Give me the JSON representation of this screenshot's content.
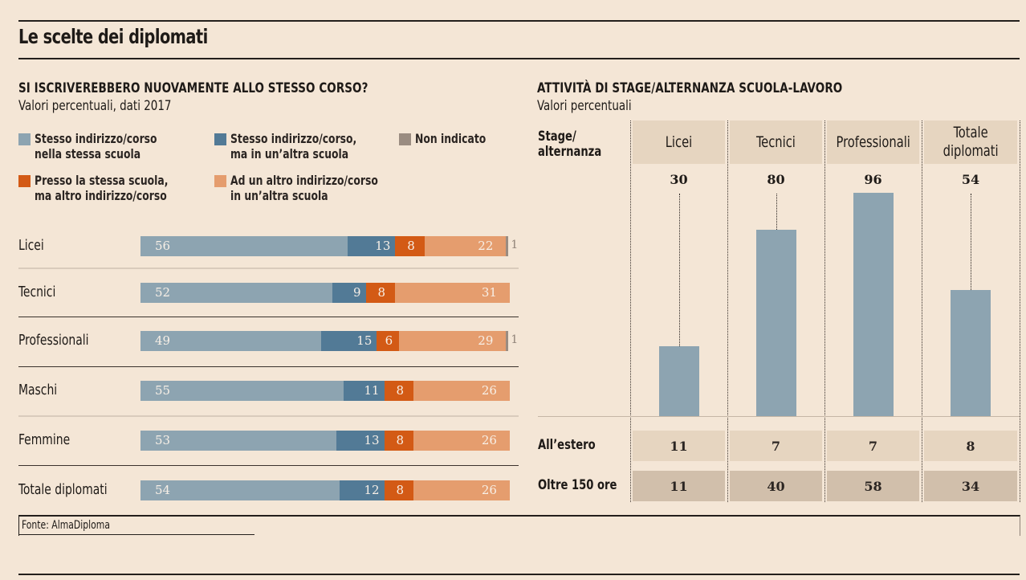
{
  "title": "Le scelte dei diplomati",
  "source": "Fonte: AlmaDiploma",
  "colors": {
    "background": "#f4e6d6",
    "same_course_same_school": "#8da4b1",
    "same_course_other_school": "#527a96",
    "same_school_other_course": "#d35a15",
    "other_course_other_school": "#e59d6e",
    "not_indicated": "#9a8c81",
    "bar_right": "#8da4b1"
  },
  "chart_data": [
    {
      "type": "bar",
      "orientation": "horizontal-stacked",
      "title": "SI ISCRIVEREBBERO NUOVAMENTE ALLO STESSO CORSO?",
      "subtitle": "Valori percentuali, dati 2017",
      "xlabel": "",
      "ylabel": "",
      "xlim": [
        0,
        100
      ],
      "grid": false,
      "legend_position": "top",
      "categories": [
        "Licei",
        "Tecnici",
        "Professionali",
        "Maschi",
        "Femmine",
        "Totale diplomati"
      ],
      "series": [
        {
          "name": "Stesso indirizzo/corso\nnella stessa scuola",
          "color_key": "same_course_same_school",
          "values": [
            56,
            52,
            49,
            55,
            53,
            54
          ]
        },
        {
          "name": "Stesso indirizzo/corso,\nma in un’altra scuola",
          "color_key": "same_course_other_school",
          "values": [
            13,
            9,
            15,
            11,
            13,
            12
          ]
        },
        {
          "name": "Presso la stessa scuola,\nma altro indirizzo/corso",
          "color_key": "same_school_other_course",
          "values": [
            8,
            8,
            6,
            8,
            8,
            8
          ]
        },
        {
          "name": "Ad un altro indirizzo/corso\nin un’altra scuola",
          "color_key": "other_course_other_school",
          "values": [
            22,
            31,
            29,
            26,
            26,
            26
          ]
        },
        {
          "name": "Non indicato",
          "color_key": "not_indicated",
          "values": [
            1,
            0,
            1,
            0,
            0,
            0
          ]
        }
      ],
      "legend_order": [
        0,
        1,
        4,
        2,
        3
      ]
    },
    {
      "type": "bar",
      "orientation": "vertical",
      "title": "ATTIVITÀ DI STAGE/ALTERNANZA SCUOLA-LAVORO",
      "subtitle": "Valori percentuali",
      "row_label": "Stage/\nalternanza",
      "ylim": [
        0,
        100
      ],
      "grid": false,
      "categories": [
        "Licei",
        "Tecnici",
        "Professionali",
        "Totale\ndiplomati"
      ],
      "values": [
        30,
        80,
        96,
        54
      ],
      "table": {
        "rows": [
          {
            "label": "All’estero",
            "values": [
              "11",
              "7",
              "7",
              "8"
            ]
          },
          {
            "label": "Oltre 150 ore",
            "values": [
              "11",
              "40",
              "58",
              "34"
            ]
          }
        ]
      }
    }
  ]
}
